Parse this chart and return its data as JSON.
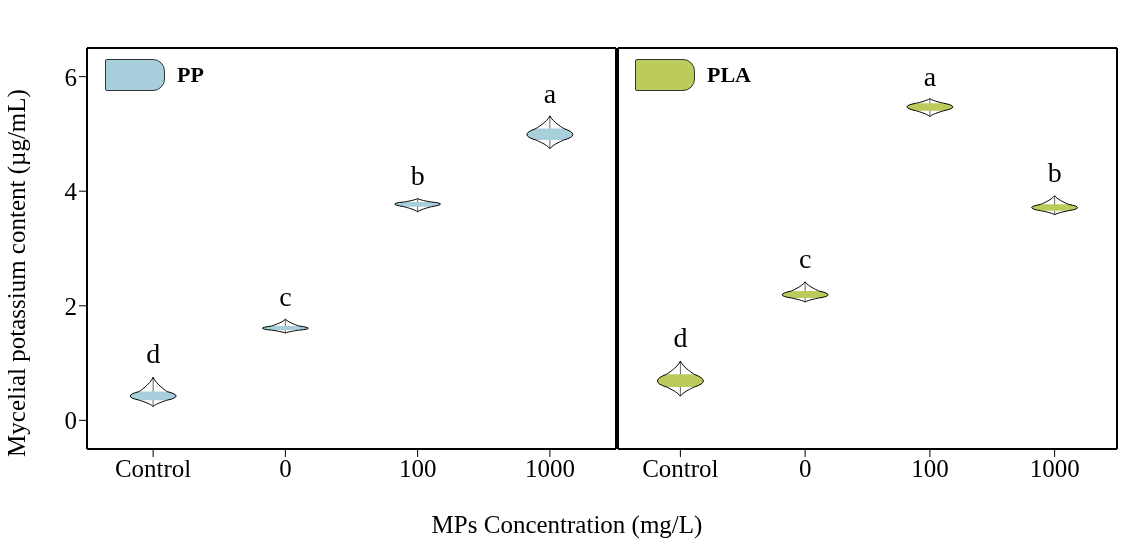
{
  "chart_data": [
    {
      "type": "box",
      "categories": [
        "Control",
        "0",
        "100",
        "1000"
      ],
      "xlabel": "MPs Concentration (mg/L)",
      "ylabel": "Mycelial potassium content (µg/mL)",
      "ylim": [
        -0.5,
        6.5
      ],
      "yticks": [
        0,
        2,
        4,
        6
      ],
      "legend": "top left",
      "grid": false,
      "series": [
        {
          "name": "PP",
          "color": "#a8d0dc",
          "boxes": [
            {
              "low": 0.24,
              "q1": 0.35,
              "median": 0.42,
              "q3": 0.5,
              "high": 0.75
            },
            {
              "low": 1.52,
              "q1": 1.57,
              "median": 1.6,
              "q3": 1.64,
              "high": 1.76
            },
            {
              "low": 3.63,
              "q1": 3.72,
              "median": 3.77,
              "q3": 3.8,
              "high": 3.86
            },
            {
              "low": 4.73,
              "q1": 4.88,
              "median": 4.97,
              "q3": 5.08,
              "high": 5.3
            }
          ]
        }
      ],
      "annotations": [
        "d",
        "c",
        "b",
        "a"
      ]
    },
    {
      "type": "box",
      "categories": [
        "Control",
        "0",
        "100",
        "1000"
      ],
      "ylim": [
        -0.5,
        6.5
      ],
      "yticks": [
        0,
        2,
        4,
        6
      ],
      "tick_labels": "x",
      "legend": "top left",
      "grid": false,
      "series": [
        {
          "name": "PLA",
          "color": "#bccb5c",
          "boxes": [
            {
              "low": 0.42,
              "q1": 0.58,
              "median": 0.68,
              "q3": 0.8,
              "high": 1.03
            },
            {
              "low": 2.06,
              "q1": 2.13,
              "median": 2.18,
              "q3": 2.25,
              "high": 2.41
            },
            {
              "low": 5.29,
              "q1": 5.39,
              "median": 5.46,
              "q3": 5.52,
              "high": 5.6
            },
            {
              "low": 3.58,
              "q1": 3.65,
              "median": 3.7,
              "q3": 3.76,
              "high": 3.91
            }
          ]
        }
      ],
      "annotations": [
        "d",
        "c",
        "a",
        "b"
      ]
    }
  ]
}
